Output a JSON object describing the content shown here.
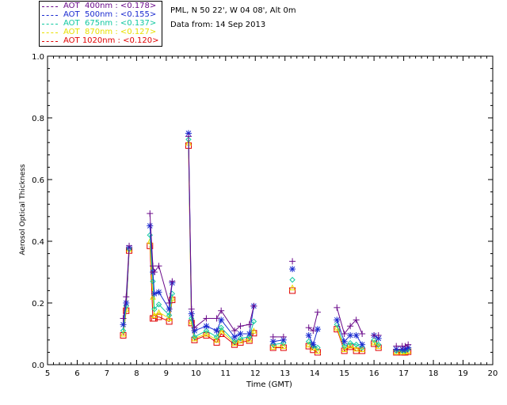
{
  "legend": {
    "items": [
      {
        "label": "AOT  400nm : <0.178>",
        "color": "#6a0a8a"
      },
      {
        "label": "AOT  500nm : <0.155>",
        "color": "#1a2ad0"
      },
      {
        "label": "AOT  675nm : <0.137>",
        "color": "#10c8a0"
      },
      {
        "label": "AOT  870nm : <0.127>",
        "color": "#e8e000"
      },
      {
        "label": "AOT 1020nm : <0.120>",
        "color": "#e00000"
      }
    ]
  },
  "info": {
    "location": "PML, N 50 22', W 04 08', Alt 0m",
    "date": "Data from: 14 Sep 2013"
  },
  "chart_data": {
    "type": "line",
    "xlabel": "Time (GMT)",
    "ylabel": "Aerosol Optical Thickness",
    "xlim": [
      5,
      20
    ],
    "ylim": [
      0.0,
      1.0
    ],
    "x_ticks": [
      "5",
      "6",
      "7",
      "8",
      "9",
      "10",
      "11",
      "12",
      "13",
      "14",
      "15",
      "16",
      "17",
      "18",
      "19",
      "20"
    ],
    "y_ticks": [
      "0.0",
      "0.2",
      "0.4",
      "0.6",
      "0.8",
      "1.0"
    ],
    "grid": false,
    "legend_position": "top-left",
    "x": [
      7.55,
      7.65,
      7.75,
      8.45,
      8.55,
      8.6,
      8.75,
      9.1,
      9.2,
      9.75,
      9.85,
      9.95,
      10.35,
      10.7,
      10.85,
      11.3,
      11.5,
      11.8,
      11.95,
      12.6,
      12.95,
      13.25,
      13.8,
      13.95,
      14.1,
      14.75,
      15.0,
      15.2,
      15.4,
      15.6,
      16.0,
      16.15,
      16.75,
      16.95,
      17.05,
      17.15
    ],
    "series": [
      {
        "name": "AOT  400nm : <0.178>",
        "values": [
          0.15,
          0.22,
          0.385,
          0.49,
          0.32,
          0.3,
          0.32,
          0.2,
          0.27,
          0.74,
          0.18,
          0.12,
          0.15,
          0.15,
          0.175,
          0.11,
          0.125,
          0.13,
          0.19,
          0.09,
          0.09,
          0.335,
          0.12,
          0.11,
          0.17,
          0.185,
          0.1,
          0.125,
          0.145,
          0.1,
          0.095,
          0.095,
          0.06,
          0.06,
          0.06,
          0.065
        ]
      },
      {
        "name": "AOT  500nm : <0.155>",
        "values": [
          0.13,
          0.2,
          0.38,
          0.45,
          0.3,
          0.23,
          0.235,
          0.18,
          0.265,
          0.75,
          0.165,
          0.11,
          0.125,
          0.11,
          0.145,
          0.09,
          0.1,
          0.1,
          0.19,
          0.075,
          0.08,
          0.31,
          0.095,
          0.065,
          0.115,
          0.145,
          0.075,
          0.095,
          0.095,
          0.065,
          0.095,
          0.085,
          0.05,
          0.05,
          0.05,
          0.055
        ]
      },
      {
        "name": "AOT  675nm : <0.137>",
        "values": [
          0.11,
          0.19,
          0.375,
          0.42,
          0.27,
          0.18,
          0.195,
          0.16,
          0.23,
          0.73,
          0.15,
          0.09,
          0.11,
          0.09,
          0.12,
          0.075,
          0.085,
          0.09,
          0.14,
          0.065,
          0.07,
          0.275,
          0.075,
          0.06,
          0.055,
          0.13,
          0.06,
          0.07,
          0.065,
          0.055,
          0.08,
          0.065,
          0.045,
          0.045,
          0.045,
          0.05
        ]
      },
      {
        "name": "AOT  870nm : <0.127>",
        "values": [
          0.1,
          0.18,
          0.375,
          0.4,
          0.22,
          0.16,
          0.17,
          0.15,
          0.215,
          0.72,
          0.14,
          0.085,
          0.1,
          0.08,
          0.11,
          0.07,
          0.078,
          0.082,
          0.11,
          0.058,
          0.06,
          0.25,
          0.065,
          0.055,
          0.045,
          0.12,
          0.05,
          0.062,
          0.052,
          0.05,
          0.072,
          0.06,
          0.042,
          0.042,
          0.042,
          0.045
        ]
      },
      {
        "name": "AOT 1020nm : <0.120>",
        "values": [
          0.095,
          0.175,
          0.37,
          0.385,
          0.15,
          0.15,
          0.155,
          0.14,
          0.21,
          0.71,
          0.135,
          0.08,
          0.095,
          0.072,
          0.1,
          0.065,
          0.072,
          0.078,
          0.102,
          0.055,
          0.055,
          0.24,
          0.06,
          0.048,
          0.04,
          0.115,
          0.045,
          0.058,
          0.045,
          0.045,
          0.068,
          0.055,
          0.04,
          0.04,
          0.04,
          0.042
        ]
      }
    ],
    "segments": [
      [
        0,
        2
      ],
      [
        3,
        8
      ],
      [
        9,
        18
      ],
      [
        19,
        20
      ],
      [
        21,
        21
      ],
      [
        22,
        24
      ],
      [
        25,
        29
      ],
      [
        30,
        31
      ],
      [
        32,
        35
      ]
    ]
  }
}
